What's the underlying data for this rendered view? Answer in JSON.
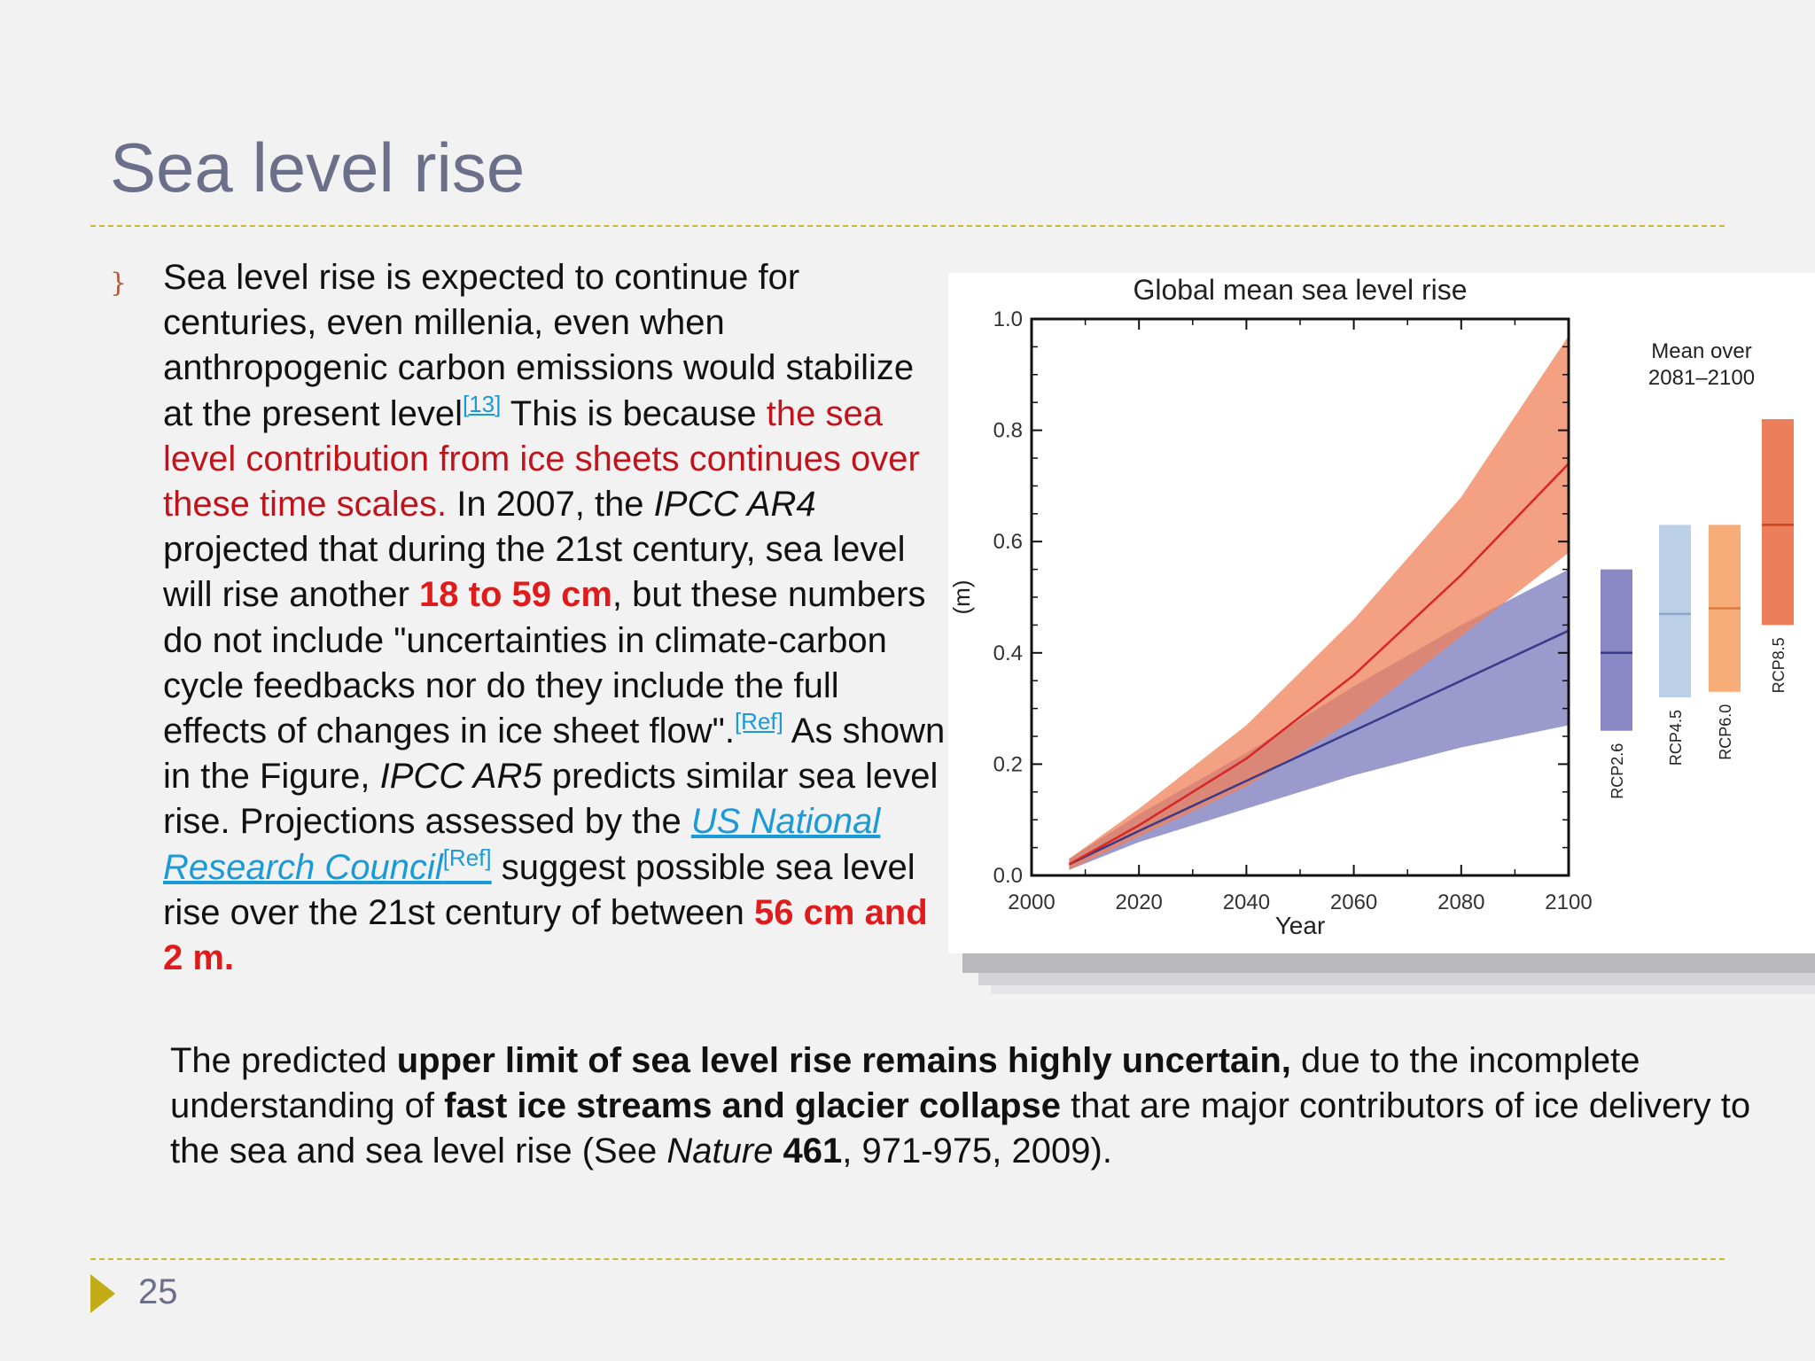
{
  "slide": {
    "title": "Sea level rise",
    "page_number": "25",
    "bullet_symbol": "}",
    "paragraph": {
      "t1": "Sea level rise is expected to continue for centuries, even millenia, even when anthropogenic carbon emissions would stabilize at the present level",
      "ref1": "[13]",
      "t2": " This is because ",
      "red1": "the sea level contribution from ice sheets continues over these time scales.",
      "t3": " In 2007,  the ",
      "ital1": "IPCC AR4",
      "t4": " projected that during the 21st century, sea level will rise another ",
      "red2": "18 to 59 cm",
      "t5": ", but these numbers do not include \"uncertainties in climate-carbon cycle feedbacks nor do they include the full effects of changes in ice sheet flow\".",
      "ref2": "[Ref]",
      "t6": " As shown in the Figure, ",
      "ital2": "IPCC AR5",
      "t7": " predicts similar sea level rise. Projections assessed by the ",
      "link1": "US National Research Council",
      "ref3": "[Ref]",
      "t8": " suggest possible sea level rise over the 21st century of between ",
      "red3": "56 cm and 2 m."
    },
    "bottom": {
      "t1": "The predicted ",
      "b1": "upper limit of sea level rise remains highly uncertain,",
      "t2": " due to the incomplete understanding of ",
      "b2": "fast ice streams and glacier collapse",
      "t3": " that are major contributors of ice delivery to the sea and sea level rise (See ",
      "i1": "Nature",
      "t4": " ",
      "b3": "461",
      "t5": ", 971-975, 2009)."
    }
  },
  "chart_data": {
    "type": "area",
    "title": "Global mean sea level rise",
    "xlabel": "Year",
    "ylabel": "(m)",
    "xlim": [
      2000,
      2100
    ],
    "ylim": [
      0.0,
      1.0
    ],
    "x_ticks": [
      "2000",
      "2020",
      "2040",
      "2060",
      "2080",
      "2100"
    ],
    "y_ticks": [
      "0.0",
      "0.2",
      "0.4",
      "0.6",
      "0.8",
      "1.0"
    ],
    "series": [
      {
        "name": "RCP2.6",
        "color": "#8f8fc8",
        "line_color": "#3a3a8a",
        "x": [
          2007,
          2020,
          2040,
          2060,
          2080,
          2100
        ],
        "mean": [
          0.02,
          0.08,
          0.17,
          0.26,
          0.35,
          0.44
        ],
        "lower": [
          0.01,
          0.06,
          0.12,
          0.18,
          0.23,
          0.27
        ],
        "upper": [
          0.03,
          0.11,
          0.22,
          0.34,
          0.45,
          0.55
        ]
      },
      {
        "name": "RCP8.5",
        "color": "#f0805a",
        "line_color": "#d82525",
        "x": [
          2007,
          2020,
          2040,
          2060,
          2080,
          2100
        ],
        "mean": [
          0.02,
          0.09,
          0.21,
          0.36,
          0.54,
          0.74
        ],
        "lower": [
          0.01,
          0.07,
          0.16,
          0.28,
          0.43,
          0.58
        ],
        "upper": [
          0.03,
          0.12,
          0.27,
          0.46,
          0.68,
          0.97
        ]
      }
    ],
    "side_bars": {
      "heading": "Mean over 2081–2100",
      "bars": [
        {
          "name": "RCP2.6",
          "low": 0.26,
          "high": 0.55,
          "median": 0.4,
          "color": "#8a88c4",
          "line_color": "#3a3a8a"
        },
        {
          "name": "RCP4.5",
          "low": 0.32,
          "high": 0.63,
          "median": 0.47,
          "color": "#bcd0e8",
          "line_color": "#8aa6cc"
        },
        {
          "name": "RCP6.0",
          "low": 0.33,
          "high": 0.63,
          "median": 0.48,
          "color": "#f6ad78",
          "line_color": "#de7a3e"
        },
        {
          "name": "RCP8.5",
          "low": 0.45,
          "high": 0.82,
          "median": 0.63,
          "color": "#ec7e5c",
          "line_color": "#c9451f"
        }
      ]
    }
  }
}
